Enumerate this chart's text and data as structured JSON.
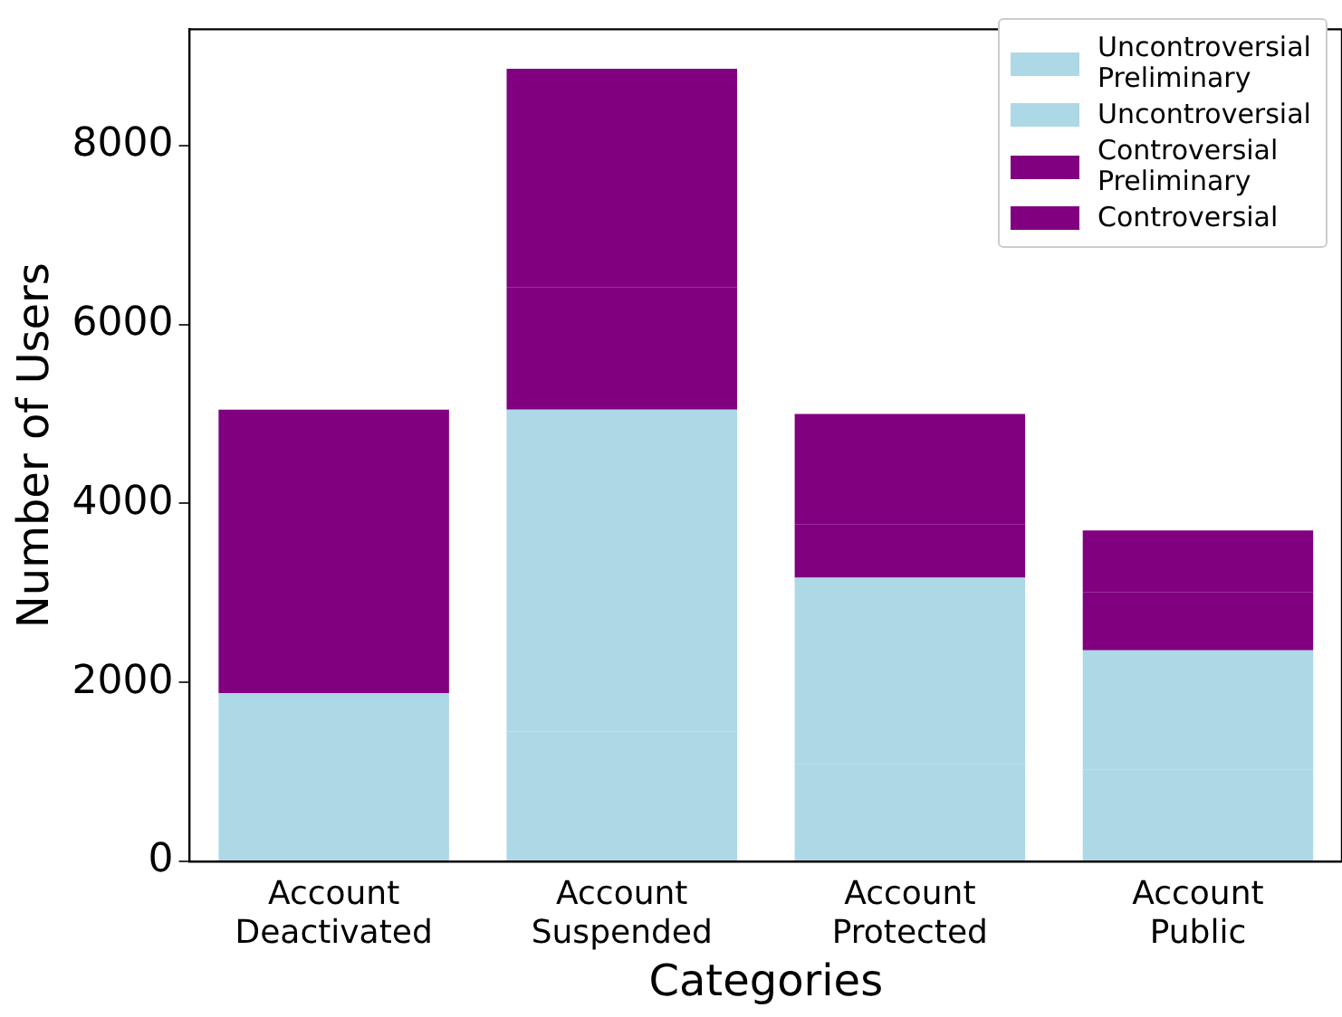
{
  "chart_data": {
    "type": "bar",
    "stacked": true,
    "xlabel": "Categories",
    "ylabel": "Number of Users",
    "categories": [
      "Account Deactivated",
      "Account Suspended",
      "Account Protected",
      "Account Public"
    ],
    "series": [
      {
        "name": "Uncontroversial Preliminary",
        "color": "#add8e6",
        "values": [
          850,
          1450,
          1090,
          1030
        ]
      },
      {
        "name": "Uncontroversial",
        "color": "#add8e6",
        "values": [
          1030,
          3600,
          2080,
          1330
        ]
      },
      {
        "name": "Controversial Preliminary",
        "color": "#800080",
        "values": [
          1680,
          1370,
          600,
          650
        ]
      },
      {
        "name": "Controversial",
        "color": "#800080",
        "values": [
          1490,
          2440,
          1230,
          690
        ]
      }
    ],
    "ylim": [
      0,
      9300
    ],
    "yticks": [
      0,
      2000,
      4000,
      6000,
      8000
    ],
    "grid": false,
    "legend": "top right"
  }
}
